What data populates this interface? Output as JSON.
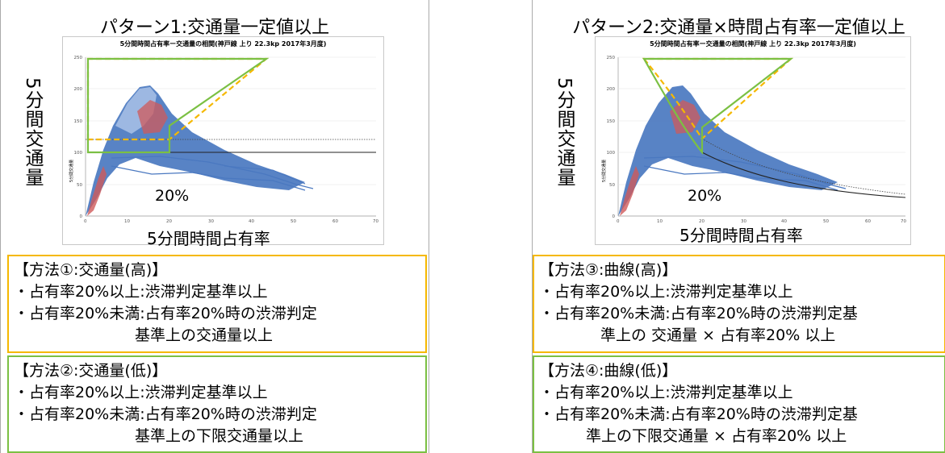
{
  "left": {
    "title": "パターン1:交通量一定値以上",
    "ylabel": "5分間交通量",
    "xlabel": "5分間時間占有率",
    "chart_title": "5分間時間占有率ー交通量の相関(神戸線 上り 22.3kp 2017年3月度)",
    "inner_ylabel": "5分間交通量",
    "pct_label": "20%",
    "xticks": [
      "0",
      "10",
      "20",
      "30",
      "40",
      "50",
      "60",
      "70"
    ],
    "yticks": [
      "0",
      "50",
      "100",
      "150",
      "200",
      "250"
    ],
    "method1": {
      "title": "【方法①:交通量(高)】",
      "line1": "・占有率20%以上:渋滞判定基準以上",
      "line2": "・占有率20%未満:占有率20%時の渋滞判定",
      "line3": "基準上の交通量以上"
    },
    "method2": {
      "title": "【方法②:交通量(低)】",
      "line1": "・占有率20%以上:渋滞判定基準以上",
      "line2": "・占有率20%未満:占有率20%時の渋滞判定",
      "line3": "基準上の下限交通量以上"
    }
  },
  "right": {
    "title": "パターン2:交通量×時間占有率一定値以上",
    "ylabel": "5分間交通量",
    "xlabel": "5分間時間占有率",
    "chart_title": "5分間時間占有率ー交通量の相関(神戸線 上り 22.3kp 2017年3月度)",
    "inner_ylabel": "5分間交通量",
    "pct_label": "20%",
    "xticks": [
      "0",
      "10",
      "20",
      "30",
      "40",
      "50",
      "60",
      "70"
    ],
    "yticks": [
      "0",
      "50",
      "100",
      "150",
      "200",
      "250"
    ],
    "method3": {
      "title": "【方法③:曲線(高)】",
      "line1": "・占有率20%以上:渋滞判定基準以上",
      "line2": "・占有率20%未満:占有率20%時の渋滞判定基",
      "line3": "準上の 交通量 × 占有率20% 以上"
    },
    "method4": {
      "title": "【方法④:曲線(低)】",
      "line1": "・占有率20%以上:渋滞判定基準以上",
      "line2": "・占有率20%未満:占有率20%時の渋滞判定基",
      "line3": "準上の下限交通量 × 占有率20% 以上"
    }
  },
  "colors": {
    "orange": "#f5b800",
    "green": "#7bc043",
    "scatter_blue": "#4a78c0",
    "scatter_red": "#d05a5a"
  }
}
